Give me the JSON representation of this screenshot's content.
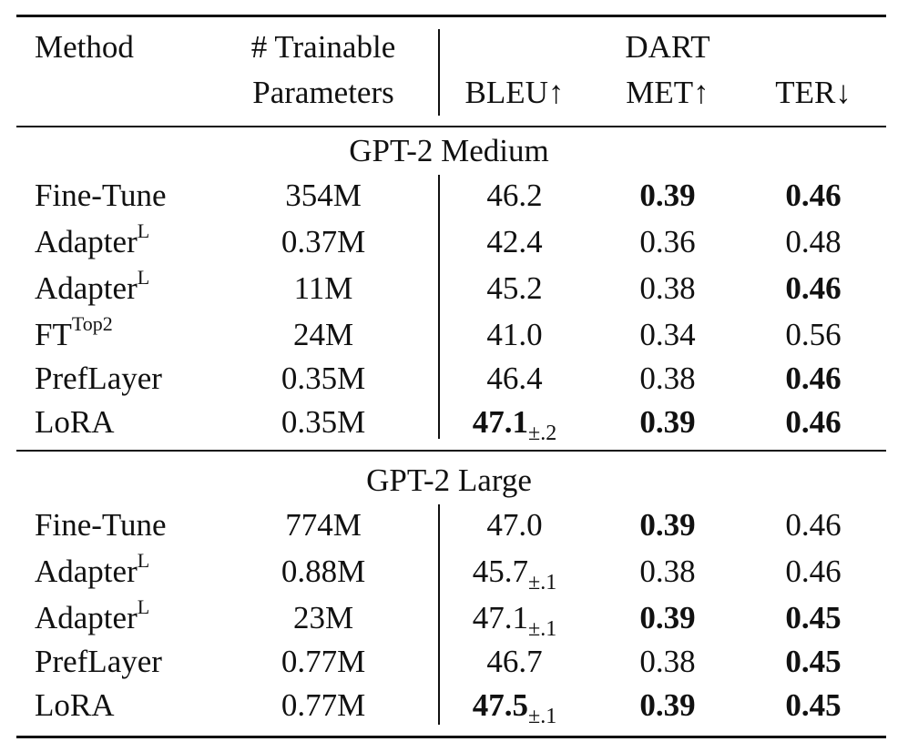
{
  "header": {
    "method": "Method",
    "params_line1": "# Trainable",
    "params_line2": "Parameters",
    "dataset": "DART",
    "bleu": "BLEU↑",
    "met": "MET↑",
    "ter": "TER↓"
  },
  "sections": [
    {
      "title": "GPT-2 Medium",
      "rows": [
        {
          "method": "Fine-Tune",
          "method_sup": "",
          "params": "354M",
          "bleu": "46.2",
          "bleu_sub": "",
          "bleu_bold": false,
          "met": "0.39",
          "met_bold": true,
          "ter": "0.46",
          "ter_bold": true
        },
        {
          "method": "Adapter",
          "method_sup": "L",
          "params": "0.37M",
          "bleu": "42.4",
          "bleu_sub": "",
          "bleu_bold": false,
          "met": "0.36",
          "met_bold": false,
          "ter": "0.48",
          "ter_bold": false
        },
        {
          "method": "Adapter",
          "method_sup": "L",
          "params": "11M",
          "bleu": "45.2",
          "bleu_sub": "",
          "bleu_bold": false,
          "met": "0.38",
          "met_bold": false,
          "ter": "0.46",
          "ter_bold": true
        },
        {
          "method": "FT",
          "method_sup": "Top2",
          "params": "24M",
          "bleu": "41.0",
          "bleu_sub": "",
          "bleu_bold": false,
          "met": "0.34",
          "met_bold": false,
          "ter": "0.56",
          "ter_bold": false
        },
        {
          "method": "PrefLayer",
          "method_sup": "",
          "params": "0.35M",
          "bleu": "46.4",
          "bleu_sub": "",
          "bleu_bold": false,
          "met": "0.38",
          "met_bold": false,
          "ter": "0.46",
          "ter_bold": true
        },
        {
          "method": "LoRA",
          "method_sup": "",
          "params": "0.35M",
          "bleu": "47.1",
          "bleu_sub": "±.2",
          "bleu_bold": true,
          "met": "0.39",
          "met_bold": true,
          "ter": "0.46",
          "ter_bold": true
        }
      ]
    },
    {
      "title": "GPT-2 Large",
      "rows": [
        {
          "method": "Fine-Tune",
          "method_sup": "",
          "params": "774M",
          "bleu": "47.0",
          "bleu_sub": "",
          "bleu_bold": false,
          "met": "0.39",
          "met_bold": true,
          "ter": "0.46",
          "ter_bold": false
        },
        {
          "method": "Adapter",
          "method_sup": "L",
          "params": "0.88M",
          "bleu": "45.7",
          "bleu_sub": "±.1",
          "bleu_bold": false,
          "met": "0.38",
          "met_bold": false,
          "ter": "0.46",
          "ter_bold": false
        },
        {
          "method": "Adapter",
          "method_sup": "L",
          "params": "23M",
          "bleu": "47.1",
          "bleu_sub": "±.1",
          "bleu_bold": false,
          "met": "0.39",
          "met_bold": true,
          "ter": "0.45",
          "ter_bold": true
        },
        {
          "method": "PrefLayer",
          "method_sup": "",
          "params": "0.77M",
          "bleu": "46.7",
          "bleu_sub": "",
          "bleu_bold": false,
          "met": "0.38",
          "met_bold": false,
          "ter": "0.45",
          "ter_bold": true
        },
        {
          "method": "LoRA",
          "method_sup": "",
          "params": "0.77M",
          "bleu": "47.5",
          "bleu_sub": "±.1",
          "bleu_bold": true,
          "met": "0.39",
          "met_bold": true,
          "ter": "0.45",
          "ter_bold": true
        }
      ]
    }
  ]
}
